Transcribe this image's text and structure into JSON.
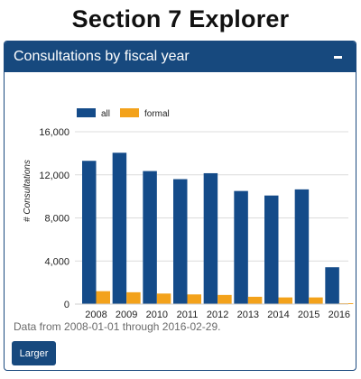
{
  "app": {
    "title": "Section 7 Explorer"
  },
  "panel": {
    "title": "Consultations by fiscal year",
    "note": "Data from 2008-01-01 through 2016-02-29.",
    "button_label": "Larger"
  },
  "colors": {
    "header_bg": "#17497e",
    "series_all": "#144b89",
    "series_formal": "#f3a21b"
  },
  "chart_data": {
    "type": "bar",
    "ylabel": "# Consultations",
    "xlabel": "",
    "ylim": [
      0,
      16000
    ],
    "yticks": [
      "0",
      "4,000",
      "8,000",
      "12,000",
      "16,000"
    ],
    "ytick_values": [
      0,
      4000,
      8000,
      12000,
      16000
    ],
    "grid": true,
    "legend_position": "top-left",
    "categories": [
      "2008",
      "2009",
      "2010",
      "2011",
      "2012",
      "2013",
      "2014",
      "2015",
      "2016"
    ],
    "series": [
      {
        "name": "all",
        "values": [
          13300,
          14050,
          12350,
          11600,
          12150,
          10500,
          10080,
          10650,
          3420
        ]
      },
      {
        "name": "formal",
        "values": [
          1200,
          1100,
          980,
          900,
          850,
          680,
          620,
          620,
          80
        ]
      }
    ]
  }
}
